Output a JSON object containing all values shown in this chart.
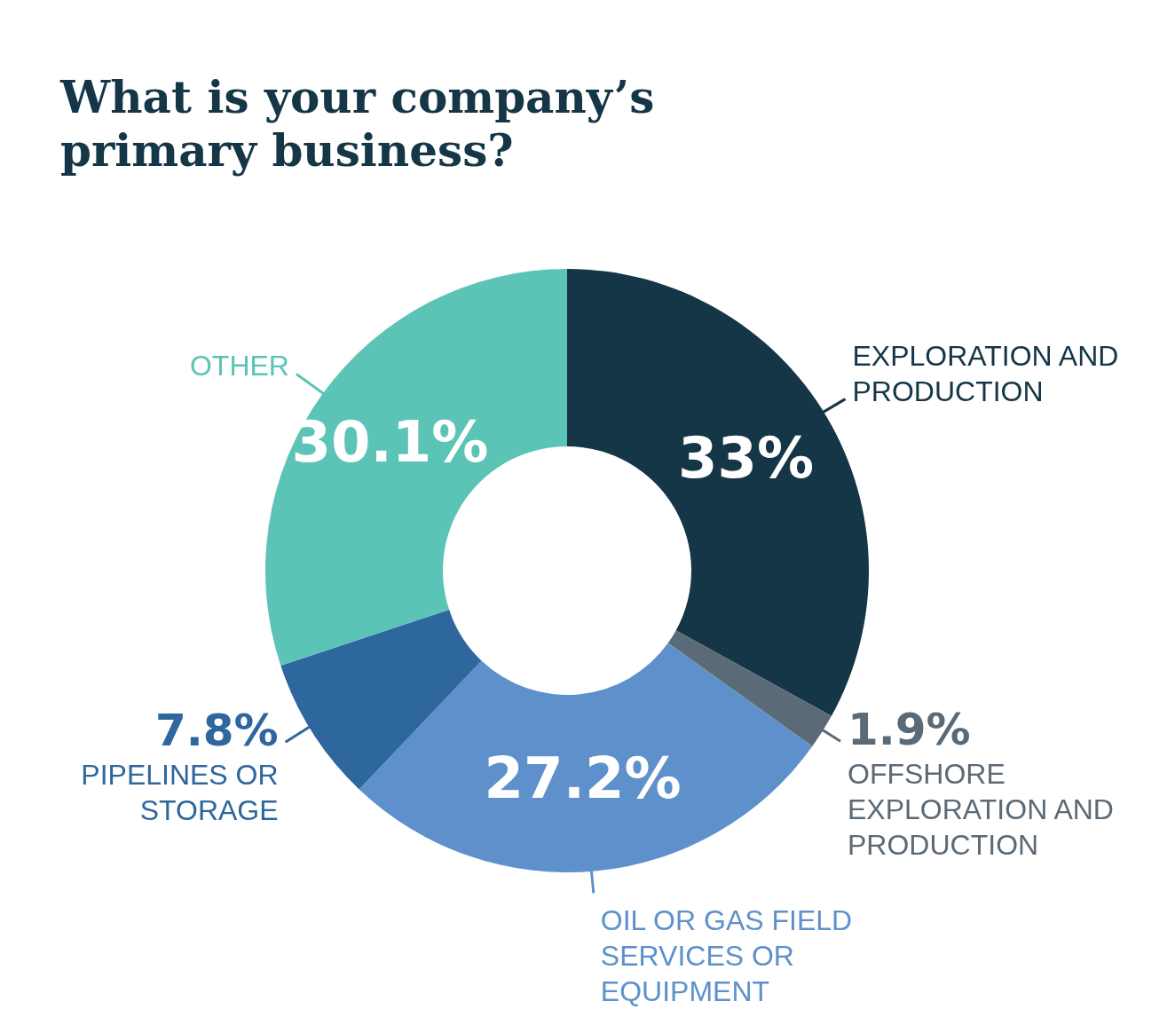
{
  "chart_data": {
    "type": "donut",
    "title": "What is your company’s primary business?",
    "categories": [
      "EXPLORATION AND PRODUCTION",
      "OFFSHORE EXPLORATION AND PRODUCTION",
      "OIL OR GAS FIELD SERVICES OR EQUIPMENT",
      "PIPELINES OR STORAGE",
      "OTHER"
    ],
    "values": [
      33,
      1.9,
      27.2,
      7.8,
      30.1
    ],
    "value_labels": [
      "33%",
      "1.9%",
      "27.2%",
      "7.8%",
      "30.1%"
    ],
    "colors": [
      "#143646",
      "#5b6a77",
      "#5e91cb",
      "#2e669e",
      "#5bc4b7"
    ]
  }
}
